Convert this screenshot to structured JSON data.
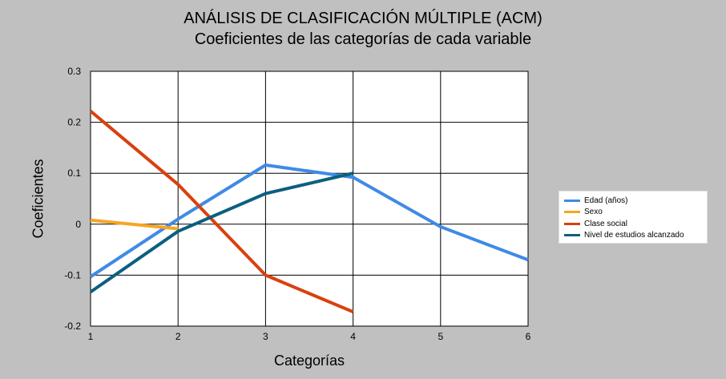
{
  "chart_data": {
    "type": "line",
    "title": "ANÁLISIS DE CLASIFICACIÓN MÚLTIPLE (ACM)",
    "subtitle": "Coeficientes de las categorías de cada variable",
    "xlabel": "Categorías",
    "ylabel": "Coeficientes",
    "xlim": [
      1,
      6
    ],
    "ylim": [
      -0.2,
      0.3
    ],
    "xticks": [
      "1",
      "2",
      "3",
      "4",
      "5",
      "6"
    ],
    "yticks": [
      "-0.2",
      "-0.1",
      "0",
      "0.1",
      "0.2",
      "0.3"
    ],
    "grid": true,
    "legend_position": "right",
    "series": [
      {
        "name": "Edad (años)",
        "color": "#3f8ae6",
        "x": [
          1,
          2,
          3,
          4,
          5,
          6
        ],
        "y": [
          -0.103,
          0.01,
          0.116,
          0.092,
          -0.005,
          -0.07
        ]
      },
      {
        "name": "Sexo",
        "color": "#f5a623",
        "x": [
          1,
          2
        ],
        "y": [
          0.008,
          -0.009
        ]
      },
      {
        "name": "Clase social",
        "color": "#d9400e",
        "x": [
          1,
          2,
          3,
          4
        ],
        "y": [
          0.222,
          0.078,
          -0.1,
          -0.172
        ]
      },
      {
        "name": "Nivel de estudios alcanzado",
        "color": "#0c5f80",
        "x": [
          1,
          2,
          3,
          4
        ],
        "y": [
          -0.133,
          -0.014,
          0.06,
          0.1
        ]
      }
    ]
  }
}
